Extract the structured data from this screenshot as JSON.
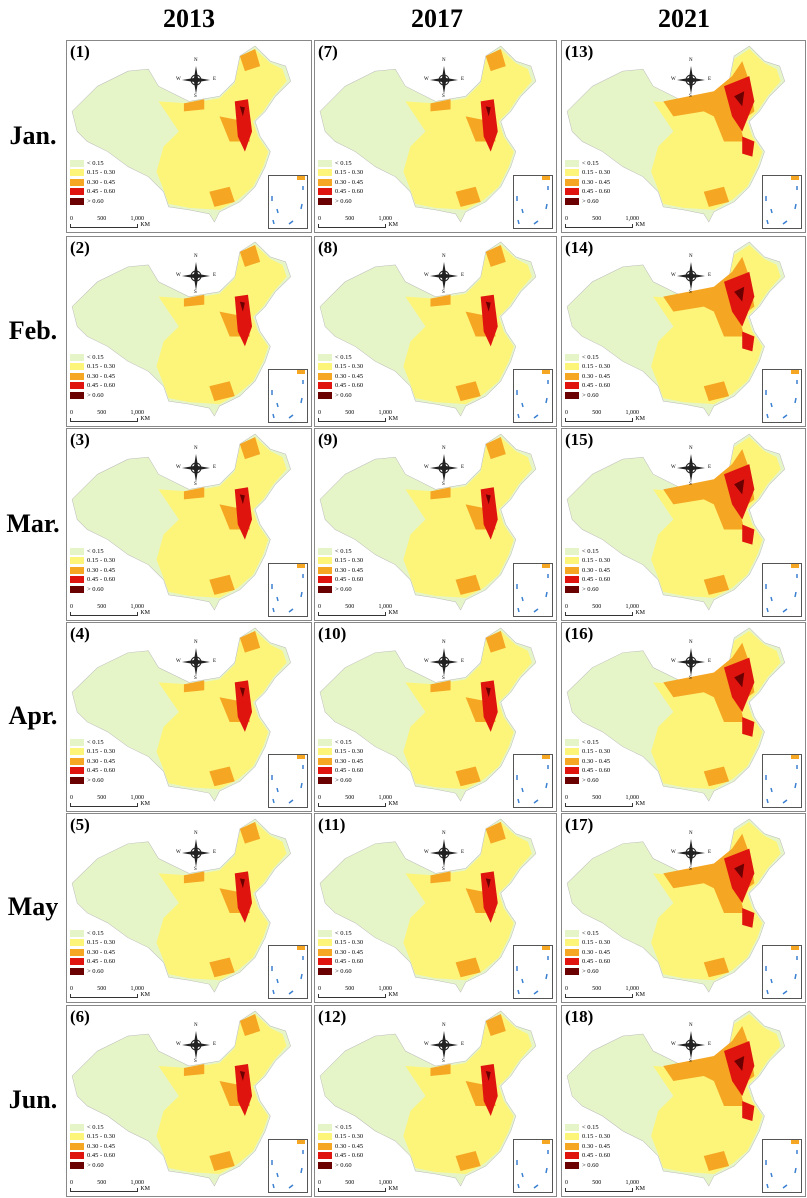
{
  "years": [
    "2013",
    "2017",
    "2021"
  ],
  "months": [
    "Jan.",
    "Feb.",
    "Mar.",
    "Apr.",
    "May",
    "Jun."
  ],
  "panels": [
    [
      "(1)",
      "(7)",
      "(13)"
    ],
    [
      "(2)",
      "(8)",
      "(14)"
    ],
    [
      "(3)",
      "(9)",
      "(15)"
    ],
    [
      "(4)",
      "(10)",
      "(16)"
    ],
    [
      "(5)",
      "(11)",
      "(17)"
    ],
    [
      "(6)",
      "(12)",
      "(18)"
    ]
  ],
  "legend": [
    {
      "label": "< 0.15",
      "color": "#e6f5c8"
    },
    {
      "label": "0.15 - 0.30",
      "color": "#fcf57a"
    },
    {
      "label": "0.30 - 0.45",
      "color": "#f5a623"
    },
    {
      "label": "0.45 - 0.60",
      "color": "#e0140f"
    },
    {
      "label": "> 0.60",
      "color": "#6b0000"
    }
  ],
  "scale": {
    "ticks": [
      "0",
      "500",
      "1,000"
    ],
    "unit": "KM"
  },
  "compass": {
    "n": "N",
    "s": "S",
    "e": "E",
    "w": "W"
  }
}
